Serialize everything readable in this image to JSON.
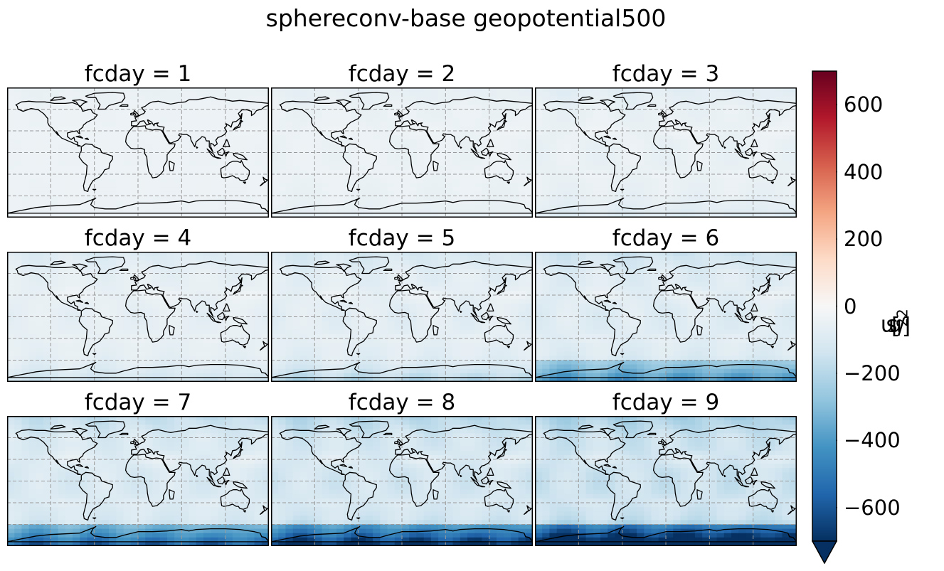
{
  "title": "sphereconv-base geopotential500",
  "panels": [
    {
      "label": "fcday = 1",
      "day": 1
    },
    {
      "label": "fcday = 2",
      "day": 2
    },
    {
      "label": "fcday = 3",
      "day": 3
    },
    {
      "label": "fcday = 4",
      "day": 4
    },
    {
      "label": "fcday = 5",
      "day": 5
    },
    {
      "label": "fcday = 6",
      "day": 6
    },
    {
      "label": "fcday = 7",
      "day": 7
    },
    {
      "label": "fcday = 8",
      "day": 8
    },
    {
      "label": "fcday = 9",
      "day": 9
    }
  ],
  "colorbar": {
    "label_base": "[m",
    "label_exp1": "2",
    "label_mid": "/s",
    "label_exp2": "2",
    "label_end": "]",
    "ticks": [
      "600",
      "400",
      "200",
      "0",
      "−200",
      "−400",
      "−600"
    ],
    "tick_values": [
      600,
      400,
      200,
      0,
      -200,
      -400,
      -600
    ],
    "vmin": -700,
    "vmax": 700,
    "extend": "min",
    "colormap": "RdBu_r",
    "colors": [
      "#053061",
      "#2166ac",
      "#4393c3",
      "#92c5de",
      "#d1e5f0",
      "#f7f7f7",
      "#fddbc7",
      "#f4a582",
      "#d6604d",
      "#b2182b",
      "#67001f"
    ]
  }
}
